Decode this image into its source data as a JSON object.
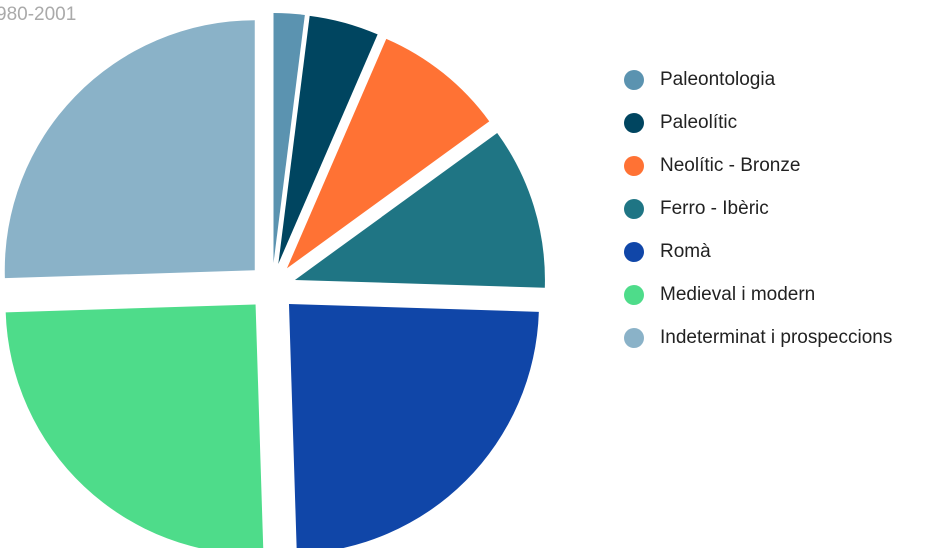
{
  "chart_data": {
    "type": "pie",
    "title": "980-2001",
    "categories": [
      "Paleontologia",
      "Paleolític",
      "Neolític - Bronze",
      "Ferro - Ibèric",
      "Romà",
      "Medieval i modern",
      "Indeterminat i prospeccions"
    ],
    "values": [
      2,
      4.5,
      8.5,
      10.5,
      24,
      25,
      25.5
    ],
    "colors": [
      "#5b93b0",
      "#004560",
      "#ff7234",
      "#1f7584",
      "#1046a8",
      "#4edc8a",
      "#8ab2c8"
    ],
    "legend": "right"
  }
}
